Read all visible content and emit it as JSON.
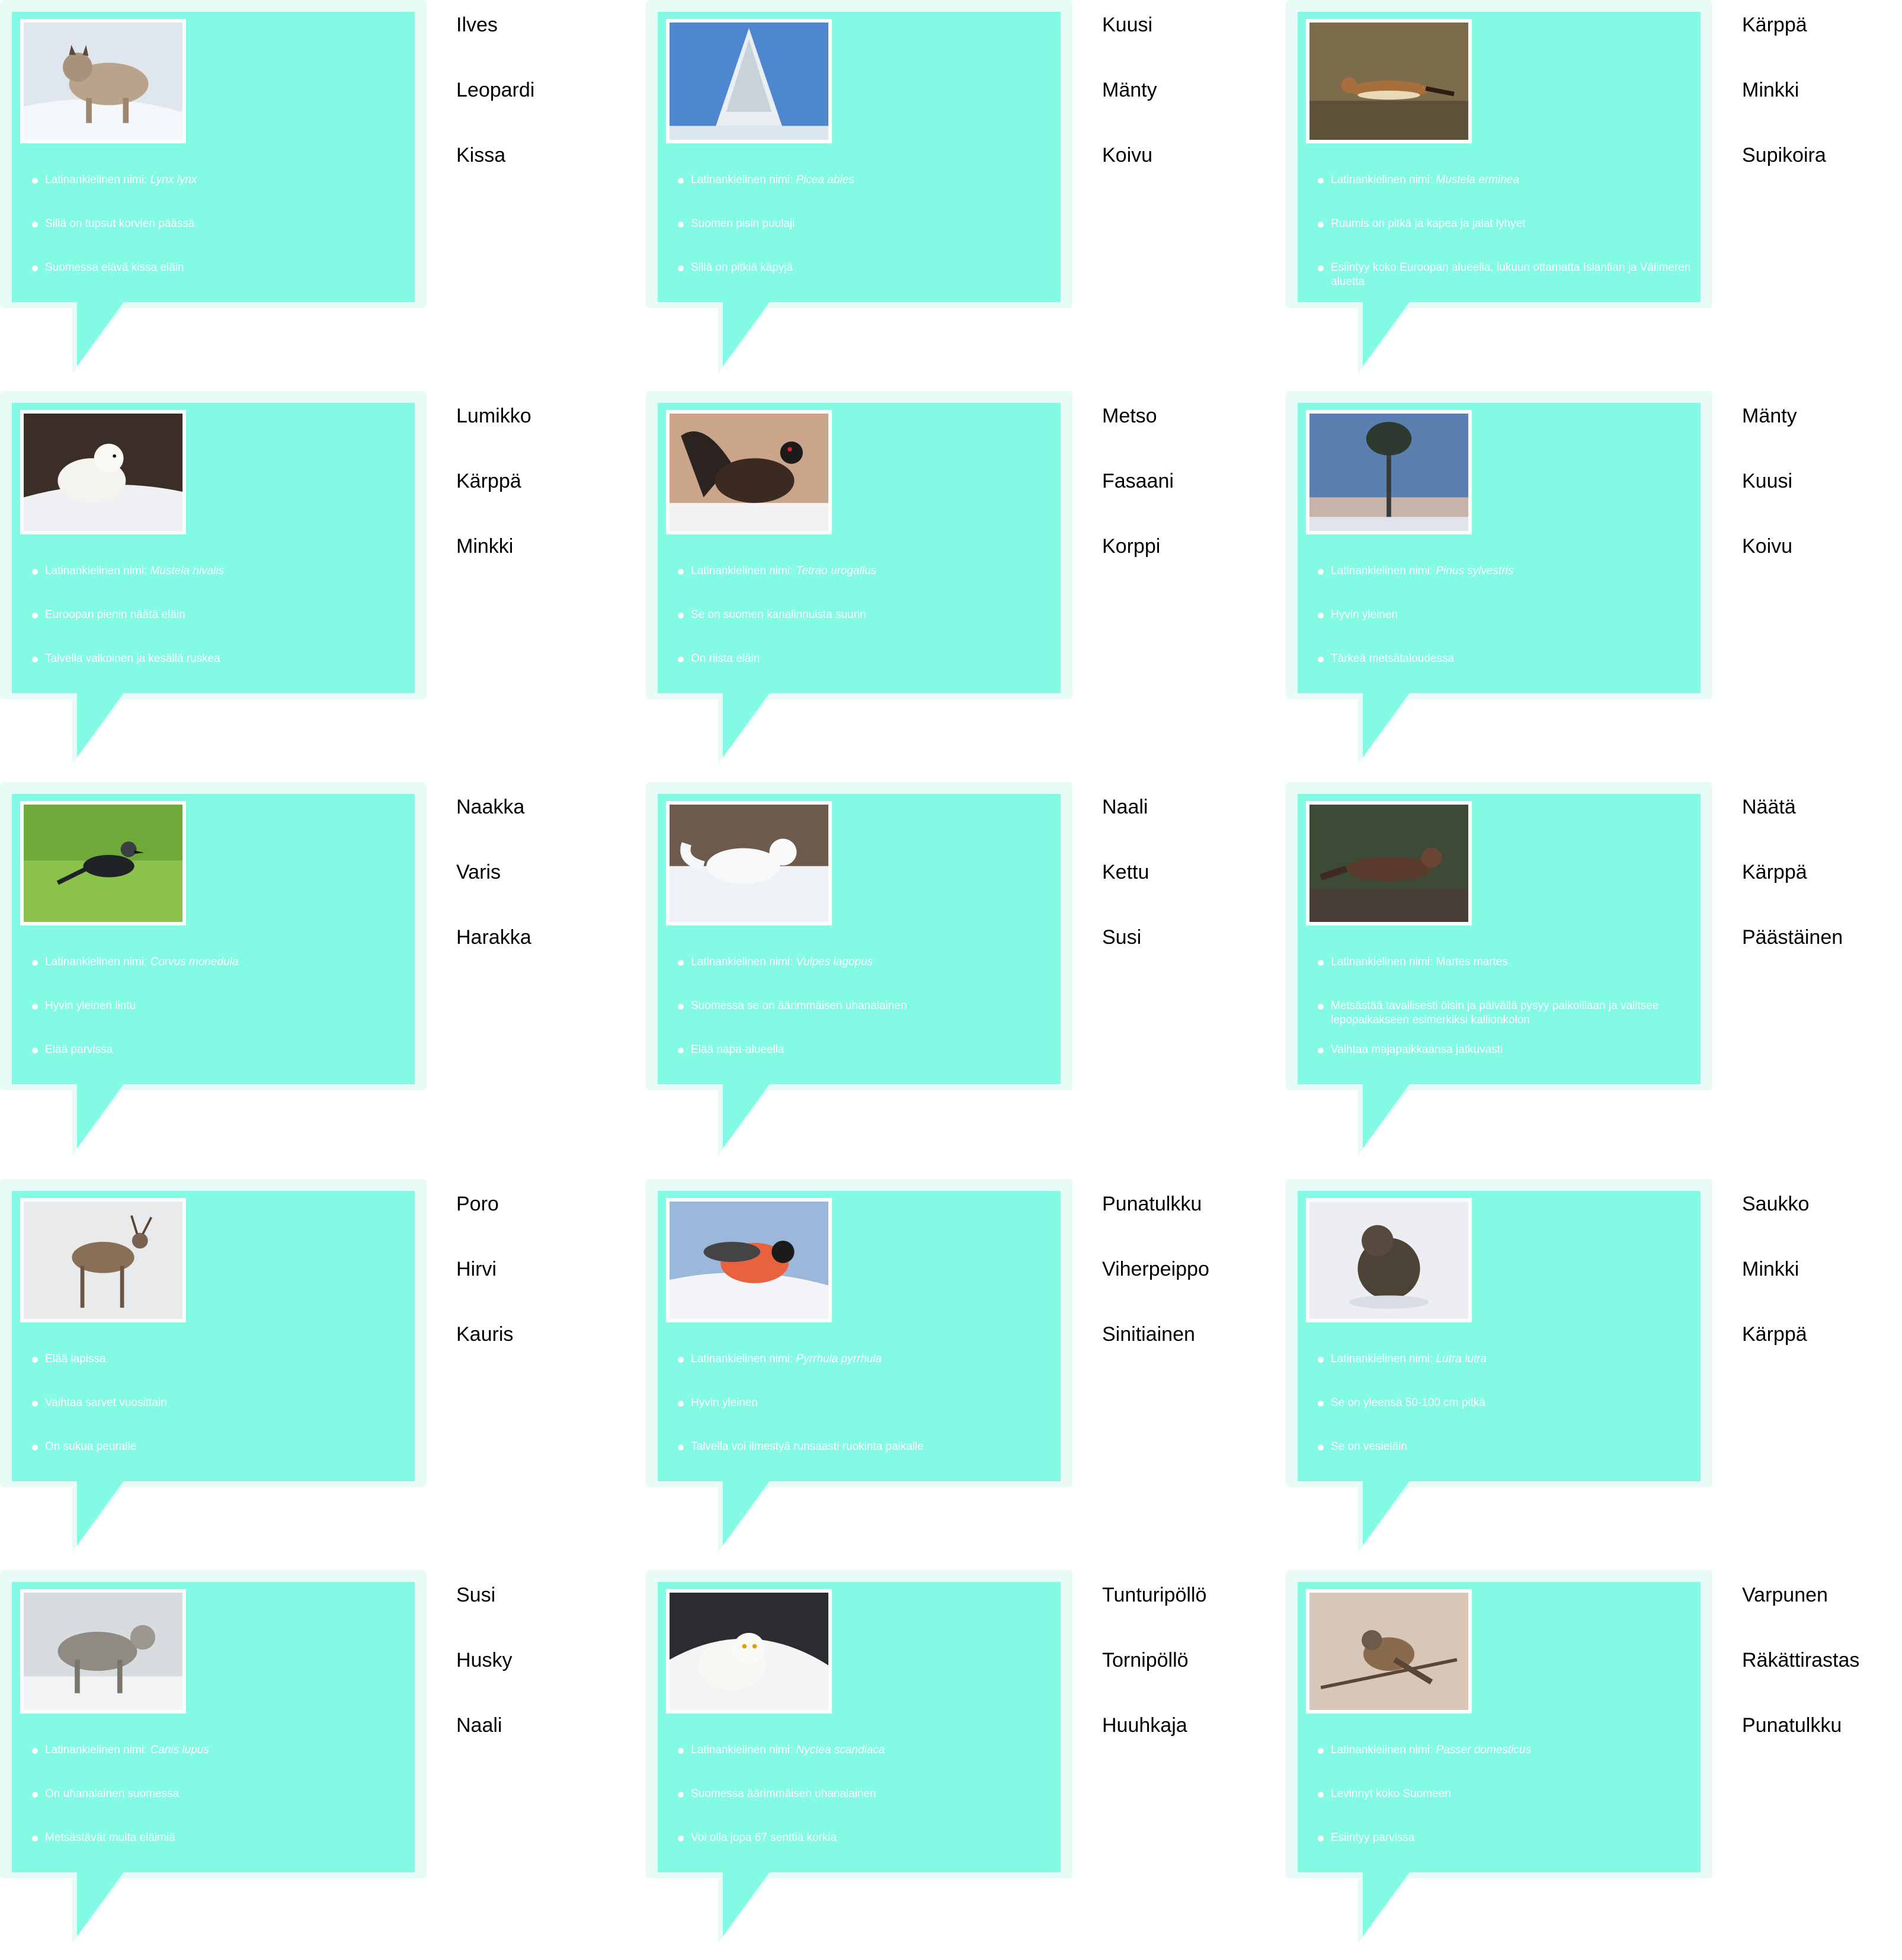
{
  "cards": [
    {
      "icon": "lynx-photo",
      "facts": [
        {
          "text": "Latinankielinen nimi: ",
          "latin": "Lynx lynx"
        },
        {
          "text": "Sillä on tupsut korvien päässä",
          "latin": ""
        },
        {
          "text": "Suomessa elävä kissa eläin",
          "latin": ""
        }
      ],
      "options": [
        "Ilves",
        "Leopardi",
        "Kissa"
      ]
    },
    {
      "icon": "spruce-photo",
      "facts": [
        {
          "text": "Latinankielinen nimi: ",
          "latin": "Picea abies"
        },
        {
          "text": "Suomen pisin puulaji",
          "latin": ""
        },
        {
          "text": "Sillä on pitkiä käpyjä",
          "latin": ""
        }
      ],
      "options": [
        "Kuusi",
        "Mänty",
        "Koivu"
      ]
    },
    {
      "icon": "stoat-photo",
      "facts": [
        {
          "text": "Latinankielinen nimi: ",
          "latin": "Mustela erminea"
        },
        {
          "text": "Ruumis on pitkä ja kapea ja jalat lyhyet",
          "latin": ""
        },
        {
          "text": "Esiintyy koko Euroopan alueella, lukuun ottamatta Islantian ja Välimeren aluetta",
          "latin": ""
        }
      ],
      "options": [
        "Kärppä",
        "Minkki",
        "Supikoira"
      ]
    },
    {
      "icon": "weasel-photo",
      "facts": [
        {
          "text": "Latinankielinen nimi: ",
          "latin": "Mustela nivalis"
        },
        {
          "text": "Euroopan pienin näätä eläin",
          "latin": ""
        },
        {
          "text": "Talvella valkoinen ja kesällä ruskea",
          "latin": ""
        }
      ],
      "options": [
        "Lumikko",
        "Kärppä",
        "Minkki"
      ]
    },
    {
      "icon": "capercaillie-photo",
      "facts": [
        {
          "text": "Latinankielinen nimi: ",
          "latin": "Tetrao urogallus"
        },
        {
          "text": "Se on suomen kanalinnuista suurin",
          "latin": ""
        },
        {
          "text": "On riista eläin",
          "latin": ""
        }
      ],
      "options": [
        "Metso",
        "Fasaani",
        "Korppi"
      ]
    },
    {
      "icon": "pine-photo",
      "facts": [
        {
          "text": "Latinankielinen nimi: ",
          "latin": "Pinus sylvestris"
        },
        {
          "text": "Hyvin yleinen",
          "latin": ""
        },
        {
          "text": "Tärkeä metsätaloudessa",
          "latin": ""
        }
      ],
      "options": [
        "Mänty",
        "Kuusi",
        "Koivu"
      ]
    },
    {
      "icon": "jackdaw-photo",
      "facts": [
        {
          "text": "Latinankielinen nimi: ",
          "latin": "Corvus monedula"
        },
        {
          "text": "Hyvin yleinen lintu",
          "latin": ""
        },
        {
          "text": "Elää parvissa",
          "latin": ""
        }
      ],
      "options": [
        "Naakka",
        "Varis",
        "Harakka"
      ]
    },
    {
      "icon": "arctic-fox-photo",
      "facts": [
        {
          "text": "Latinankielinen nimi: ",
          "latin": "Vulpes lagopus"
        },
        {
          "text": "Suomessa se on äärimmäisen uhanalainen",
          "latin": ""
        },
        {
          "text": "Elää napa-alueella",
          "latin": ""
        }
      ],
      "options": [
        "Naali",
        "Kettu",
        "Susi"
      ]
    },
    {
      "icon": "marten-photo",
      "facts": [
        {
          "text": "Latinankielinen nimi: Martes martes",
          "latin": ""
        },
        {
          "text": "Metsästää tavallisesti öisin ja päivällä pysyy paikoillaan ja valitsee lepopaikakseen esimerkiksi kallionkolon",
          "latin": ""
        },
        {
          "text": "Vaihtaa majapaikkaansa jatkuvasti",
          "latin": ""
        }
      ],
      "options": [
        "Näätä",
        "Kärppä",
        "Päästäinen"
      ]
    },
    {
      "icon": "reindeer-photo",
      "facts": [
        {
          "text": "Elää lapissa",
          "latin": ""
        },
        {
          "text": "Vaihtaa sarvet vuosittain",
          "latin": ""
        },
        {
          "text": "On sukua peuralle",
          "latin": ""
        }
      ],
      "options": [
        "Poro",
        "Hirvi",
        "Kauris"
      ]
    },
    {
      "icon": "bullfinch-photo",
      "facts": [
        {
          "text": "Latinankielinen nimi: ",
          "latin": "Pyrrhula pyrrhula"
        },
        {
          "text": "Hyvin yleinen",
          "latin": ""
        },
        {
          "text": "Talvella voi ilmestyä runsaasti ruokinta paikalle",
          "latin": ""
        }
      ],
      "options": [
        "Punatulkku",
        "Viherpeippo",
        "Sinitiainen"
      ]
    },
    {
      "icon": "otter-photo",
      "facts": [
        {
          "text": "Latinankielinen nimi: ",
          "latin": "Lutra lutra"
        },
        {
          "text": "Se on yleensä 50-100 cm pitkä",
          "latin": ""
        },
        {
          "text": "Se on vesieläin",
          "latin": ""
        }
      ],
      "options": [
        "Saukko",
        "Minkki",
        "Kärppä"
      ]
    },
    {
      "icon": "wolf-photo",
      "facts": [
        {
          "text": "Latinankielinen nimi: ",
          "latin": "Canis lupus"
        },
        {
          "text": "On uhanalainen suomessa",
          "latin": ""
        },
        {
          "text": "Metsästävät muita eläimiä",
          "latin": ""
        }
      ],
      "options": [
        "Susi",
        "Husky",
        "Naali"
      ]
    },
    {
      "icon": "snowy-owl-photo",
      "facts": [
        {
          "text": "Latinankielinen nimi: ",
          "latin": "Nyctea scandiaca"
        },
        {
          "text": "Suomessa äärimmäisen uhanalainen",
          "latin": ""
        },
        {
          "text": "Voi olla jopa 67 senttiä korkia",
          "latin": ""
        }
      ],
      "options": [
        "Tunturipöllö",
        "Tornipöllö",
        "Huuhkaja"
      ]
    },
    {
      "icon": "sparrow-photo",
      "facts": [
        {
          "text": "Latinankielinen nimi: ",
          "latin": "Passer domesticus"
        },
        {
          "text": "Levinnyt koko Suomeen",
          "latin": ""
        },
        {
          "text": "Esiintyy parvissa",
          "latin": ""
        }
      ],
      "options": [
        "Varpunen",
        "Räkättirastas",
        "Punatulkku"
      ]
    }
  ],
  "colors": {
    "bubble": "#83fae3",
    "halo": "#e9fbf6"
  }
}
